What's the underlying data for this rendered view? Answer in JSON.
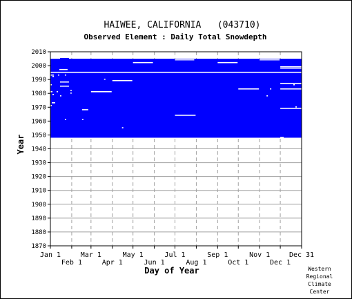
{
  "chart_data": {
    "type": "heatmap",
    "title": "HAIWEE, CALIFORNIA   (043710)",
    "subtitle": "Observed Element : Daily Total Snowdepth",
    "xlabel": "Day of Year",
    "ylabel": "Year",
    "ylim": [
      1870,
      2010
    ],
    "yticks": [
      1870,
      1880,
      1890,
      1900,
      1910,
      1920,
      1930,
      1940,
      1950,
      1960,
      1970,
      1980,
      1990,
      2000,
      2010
    ],
    "xticks": [
      {
        "label": "Jan 1",
        "day": 1,
        "row": 1
      },
      {
        "label": "Feb 1",
        "day": 32,
        "row": 2
      },
      {
        "label": "Mar 1",
        "day": 60,
        "row": 1
      },
      {
        "label": "Apr 1",
        "day": 91,
        "row": 2
      },
      {
        "label": "May 1",
        "day": 121,
        "row": 1
      },
      {
        "label": "Jun 1",
        "day": 152,
        "row": 2
      },
      {
        "label": "Jul 1",
        "day": 182,
        "row": 1
      },
      {
        "label": "Aug 1",
        "day": 213,
        "row": 2
      },
      {
        "label": "Sep 1",
        "day": 244,
        "row": 1
      },
      {
        "label": "Oct 1",
        "day": 274,
        "row": 2
      },
      {
        "label": "Nov 1",
        "day": 305,
        "row": 1
      },
      {
        "label": "Dec 1",
        "day": 335,
        "row": 2
      },
      {
        "label": "Dec 31",
        "day": 366,
        "row": 1
      }
    ],
    "grid": true,
    "data_color": "#0000ff",
    "coverage": {
      "start_year": 1948,
      "end_year": 2004,
      "start_day": 1,
      "end_day": 366
    },
    "extra_coverage": [
      {
        "year_from": 2004,
        "year_to": 2005.5,
        "day_from": 15,
        "day_to": 28
      }
    ],
    "missing_ranges": [
      {
        "year": 1995,
        "day_from": 1,
        "day_to": 366
      },
      {
        "year": 1997,
        "day_from": 14,
        "day_to": 26
      },
      {
        "year": 2002,
        "day_from": 121,
        "day_to": 150
      },
      {
        "year": 2004,
        "day_from": 182,
        "day_to": 210
      },
      {
        "year": 2002,
        "day_from": 244,
        "day_to": 273
      },
      {
        "year": 2004,
        "day_from": 305,
        "day_to": 334
      },
      {
        "year": 1998,
        "day_from": 335,
        "day_to": 366
      },
      {
        "year": 1999,
        "day_from": 335,
        "day_to": 366
      },
      {
        "year": 1988,
        "day_from": 15,
        "day_to": 28
      },
      {
        "year": 1985,
        "day_from": 15,
        "day_to": 28
      },
      {
        "year": 1981,
        "day_from": 60,
        "day_to": 90
      },
      {
        "year": 1989,
        "day_from": 91,
        "day_to": 120
      },
      {
        "year": 1990,
        "day_from": 79,
        "day_to": 81
      },
      {
        "year": 1987,
        "day_from": 335,
        "day_to": 366
      },
      {
        "year": 1983,
        "day_from": 335,
        "day_to": 366
      },
      {
        "year": 1969,
        "day_from": 335,
        "day_to": 366
      },
      {
        "year": 1983,
        "day_from": 274,
        "day_to": 304
      },
      {
        "year": 1964,
        "day_from": 182,
        "day_to": 212
      },
      {
        "year": 1948,
        "day_from": 335,
        "day_to": 340
      },
      {
        "year": 1968,
        "day_from": 47,
        "day_to": 56
      },
      {
        "year": 1961,
        "day_from": 47,
        "day_to": 49
      },
      {
        "year": 1961,
        "day_from": 22,
        "day_to": 24
      },
      {
        "year": 1955,
        "day_from": 105,
        "day_to": 107
      },
      {
        "year": 1993,
        "day_from": 1,
        "day_to": 6
      },
      {
        "year": 1993,
        "day_from": 12,
        "day_to": 14
      },
      {
        "year": 1993,
        "day_from": 22,
        "day_to": 24
      },
      {
        "year": 1992,
        "day_from": 4,
        "day_to": 6
      },
      {
        "year": 1986,
        "day_from": 1,
        "day_to": 3
      },
      {
        "year": 1981,
        "day_from": 1,
        "day_to": 4
      },
      {
        "year": 1981,
        "day_from": 10,
        "day_to": 12
      },
      {
        "year": 1979,
        "day_from": 4,
        "day_to": 6
      },
      {
        "year": 1978,
        "day_from": 15,
        "day_to": 17
      },
      {
        "year": 1973,
        "day_from": 3,
        "day_to": 8
      },
      {
        "year": 1971,
        "day_from": 1,
        "day_to": 3
      },
      {
        "year": 1980,
        "day_from": 30,
        "day_to": 32
      },
      {
        "year": 1982,
        "day_from": 30,
        "day_to": 32
      },
      {
        "year": 1986,
        "day_from": 354,
        "day_to": 356
      },
      {
        "year": 1978,
        "day_from": 315,
        "day_to": 317
      },
      {
        "year": 1983,
        "day_from": 320,
        "day_to": 322
      },
      {
        "year": 1970,
        "day_from": 357,
        "day_to": 359
      }
    ]
  },
  "footer": {
    "credit_lines": [
      "Western",
      "Regional",
      "Climate",
      "Center"
    ]
  }
}
